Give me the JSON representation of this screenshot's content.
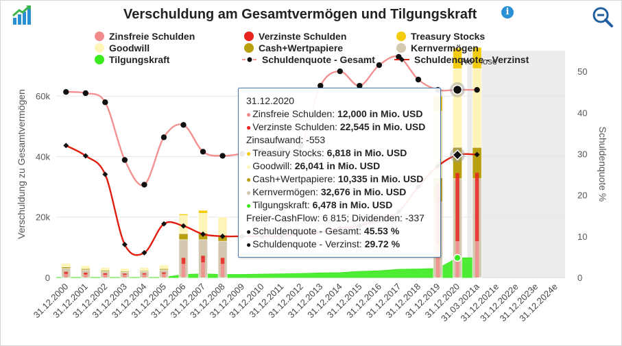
{
  "header": {
    "title": "Verschuldung am Gesamtvermögen und Tilgungskraft",
    "info_label": "i"
  },
  "colors": {
    "zinsfrei": "#f28c8c",
    "verzinst": "#e8221e",
    "treasury": "#f3cc10",
    "goodwill": "#fff5b8",
    "cash": "#b8a010",
    "kern": "#d4c8b0",
    "tilgung": "#3bea1e",
    "quote_gesamt": "#f39090",
    "quote_verzinst": "#e11d0f",
    "forecast_band": "#ececec",
    "tooltip_border": "#4a78a8"
  },
  "chart_data": {
    "type": "bar",
    "title": "Verschuldung am Gesamtvermögen und Tilgungskraft",
    "ylabel_left": "Verschuldung zu Gesamtvermögen",
    "ylabel_right": "Schuldenquote %",
    "ylim_left": [
      0,
      75000
    ],
    "ylim_right": [
      0,
      55
    ],
    "yticks_left": [
      0,
      20000,
      40000,
      60000
    ],
    "ytick_labels_left": [
      "0",
      "20k",
      "40k",
      "60k"
    ],
    "yticks_right": [
      0,
      10,
      20,
      30,
      40,
      50
    ],
    "ytick_labels_right": [
      "0",
      "10",
      "20",
      "30",
      "40",
      "50"
    ],
    "forecast_label": "Prognose",
    "forecast_start_index": 21,
    "categories": [
      "31.12.2000",
      "31.12.2001",
      "31.12.2002",
      "31.12.2003",
      "31.12.2004",
      "31.12.2005",
      "31.12.2006",
      "31.12.2007",
      "31.12.2008",
      "31.12.2009",
      "31.12.2010",
      "31.12.2011",
      "31.12.2012",
      "31.12.2013",
      "31.12.2014",
      "31.12.2015",
      "31.12.2016",
      "31.12.2017",
      "31.12.2018",
      "31.12.2019",
      "31.12.2020",
      "31.03.2021a",
      "31.12.2021e",
      "31.12.2022e",
      "31.12.2023e",
      "31.12.2024e"
    ],
    "legend": [
      "Zinsfreie Schulden",
      "Verzinste Schulden",
      "Treasury Stocks",
      "Goodwill",
      "Cash+Wertpapiere",
      "Kernvermögen",
      "Tilgungskraft",
      "Schuldenquote - Gesamt",
      "Schuldenquote - Verzinst"
    ],
    "stacked_bars": [
      {
        "name": "Kernvermögen",
        "values": [
          3000,
          2500,
          2000,
          1800,
          2000,
          2500,
          12500,
          12500,
          12000,
          null,
          null,
          null,
          null,
          null,
          null,
          null,
          null,
          null,
          null,
          25000,
          32676,
          32700,
          null,
          null,
          null,
          null
        ]
      },
      {
        "name": "Cash+Wertpapiere",
        "values": [
          500,
          400,
          400,
          300,
          300,
          400,
          2000,
          2200,
          2000,
          null,
          null,
          null,
          null,
          null,
          null,
          null,
          null,
          null,
          null,
          8000,
          10335,
          10300,
          null,
          null,
          null,
          null
        ]
      },
      {
        "name": "Goodwill",
        "values": [
          1200,
          1000,
          900,
          900,
          1000,
          1200,
          6000,
          6500,
          6000,
          null,
          null,
          null,
          null,
          null,
          null,
          null,
          null,
          null,
          null,
          22000,
          26041,
          26100,
          null,
          null,
          null,
          null
        ]
      },
      {
        "name": "Treasury Stocks",
        "values": [
          0,
          0,
          0,
          0,
          0,
          0,
          500,
          1000,
          0,
          null,
          null,
          null,
          null,
          null,
          null,
          null,
          null,
          null,
          null,
          5000,
          6818,
          7000,
          null,
          null,
          null,
          null
        ]
      }
    ],
    "overlay_bars": [
      {
        "name": "Zinsfreie Schulden",
        "values": [
          1200,
          1000,
          900,
          900,
          1000,
          1200,
          4500,
          5000,
          4500,
          null,
          null,
          null,
          null,
          null,
          null,
          null,
          null,
          null,
          null,
          11000,
          12000,
          12000,
          null,
          null,
          null,
          null
        ]
      },
      {
        "name": "Verzinste Schulden",
        "values": [
          700,
          600,
          500,
          400,
          400,
          500,
          2000,
          2200,
          2000,
          null,
          null,
          null,
          null,
          null,
          null,
          null,
          null,
          null,
          null,
          20000,
          22545,
          22600,
          null,
          null,
          null,
          null
        ]
      }
    ],
    "series": [
      {
        "name": "Tilgungskraft",
        "axis": "left",
        "type": "area",
        "values": [
          0,
          0,
          0,
          0,
          0,
          0,
          1000,
          1200,
          1000,
          1000,
          1100,
          1200,
          1300,
          1500,
          1600,
          2000,
          2200,
          2700,
          2800,
          3000,
          6478,
          6500,
          null,
          null,
          null,
          null
        ]
      },
      {
        "name": "Schuldenquote - Gesamt",
        "axis": "right",
        "type": "line",
        "values": [
          45,
          44.7,
          42.5,
          28.5,
          22.5,
          34,
          37,
          30.5,
          29.5,
          30,
          30.5,
          31,
          32,
          46.5,
          50,
          46.5,
          51.5,
          53.5,
          48,
          45.5,
          45.53,
          45.5,
          null,
          null,
          null,
          null
        ]
      },
      {
        "name": "Schuldenquote - Verzinst",
        "axis": "right",
        "type": "line",
        "values": [
          32,
          29.5,
          25,
          8,
          6,
          13,
          12.5,
          10.5,
          10,
          10,
          10,
          10,
          10.5,
          11,
          12,
          12.5,
          14,
          16,
          22,
          27,
          29.72,
          29.8,
          null,
          null,
          null,
          null
        ]
      }
    ],
    "tooltip": {
      "date": "31.12.2020",
      "rows": [
        {
          "label": "Zinsfreie Schulden: ",
          "value": "12,000 in Mio. USD",
          "color": "#f28c8c"
        },
        {
          "label": "Verzinste Schulden: ",
          "value": "22,545 in Mio. USD",
          "color": "#e8221e"
        },
        {
          "plain": "Zinsaufwand: -553"
        },
        {
          "label": "Treasury Stocks: ",
          "value": "6,818 in Mio. USD",
          "color": "#f3cc10"
        },
        {
          "label": "Goodwill: ",
          "value": "26,041 in Mio. USD",
          "color": "#fff5b8"
        },
        {
          "label": "Cash+Wertpapiere: ",
          "value": "10,335 in Mio. USD",
          "color": "#b8a010"
        },
        {
          "label": "Kernvermögen: ",
          "value": "32,676 in Mio. USD",
          "color": "#d4c8b0"
        },
        {
          "label": "Tilgungskraft: ",
          "value": "6,478 in Mio. USD",
          "color": "#3bea1e"
        },
        {
          "plain": "Freier-CashFlow: 6 815; Dividenden: -337"
        },
        {
          "label": "Schuldenquote - Gesamt: ",
          "value": "45.53 %",
          "color": "#111111"
        },
        {
          "label": "Schuldenquote - Verzinst: ",
          "value": "29.72 %",
          "color": "#111111"
        }
      ]
    }
  }
}
